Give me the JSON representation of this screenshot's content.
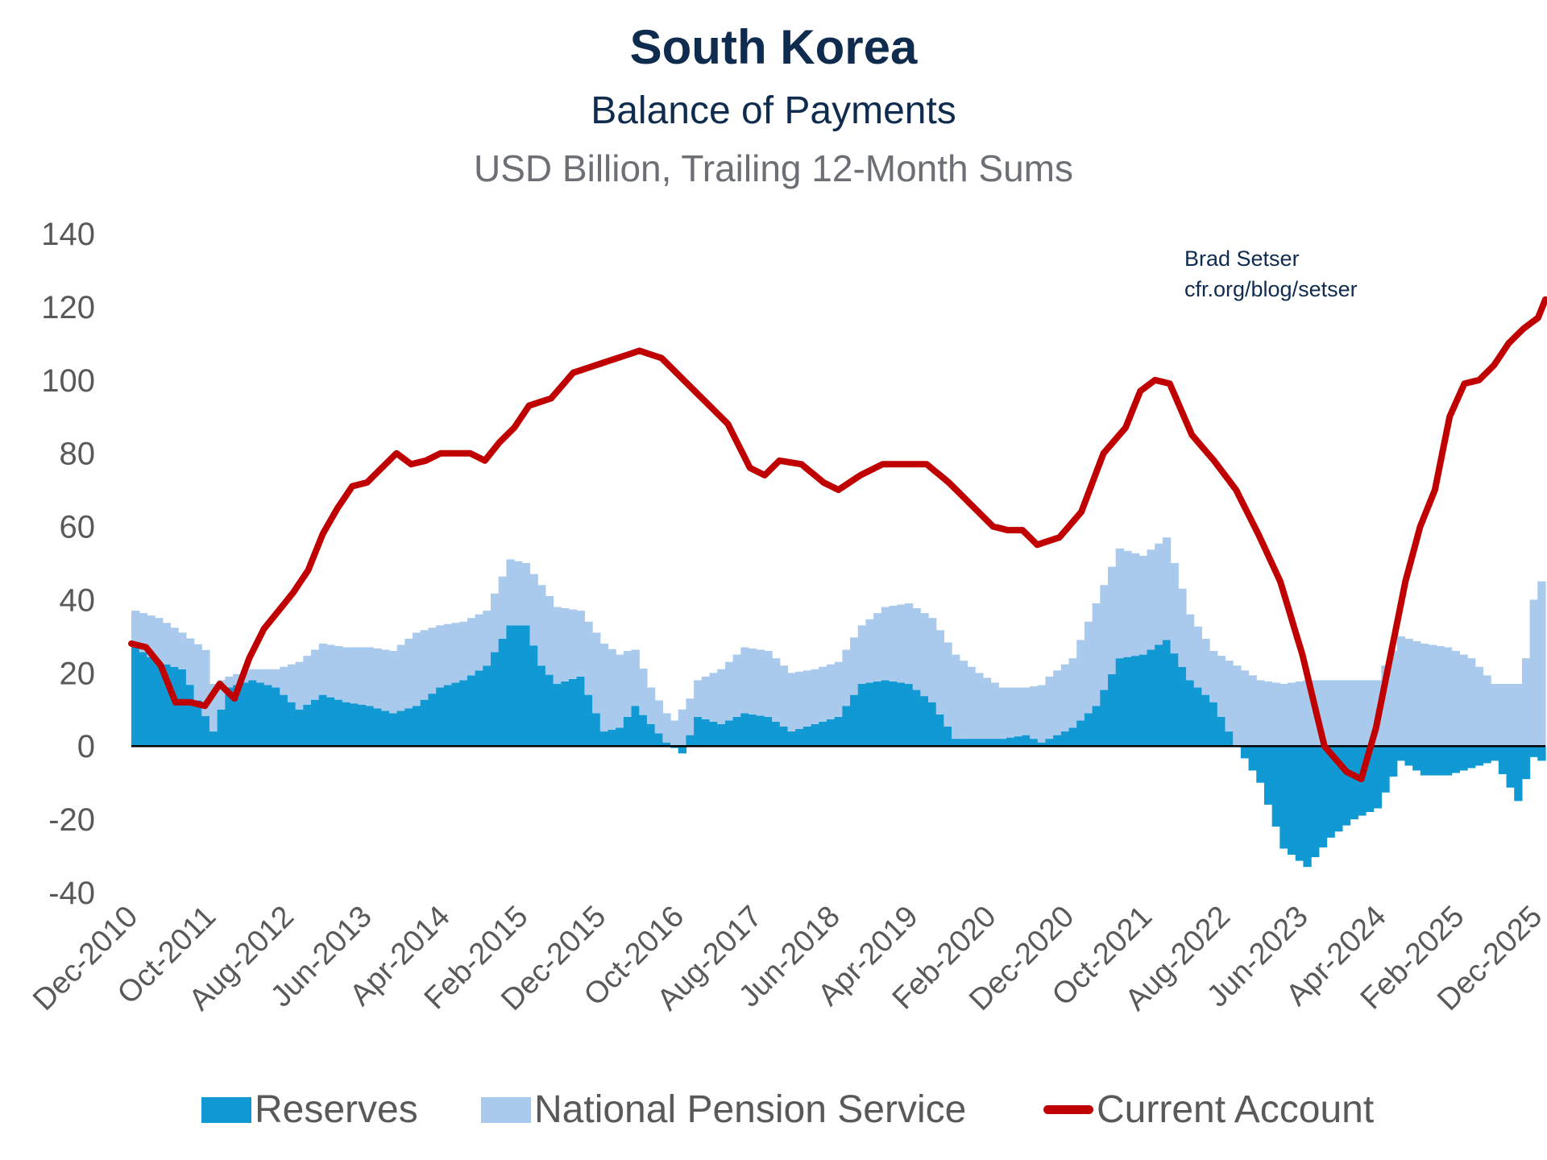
{
  "chart_data": {
    "type": "bar",
    "title": "South Korea",
    "subtitle": "Balance of Payments",
    "units": "USD Billion, Trailing 12-Month Sums",
    "credit": [
      "Brad Setser",
      "cfr.org/blog/setser"
    ],
    "xlabel": "",
    "ylabel": "",
    "ylim": [
      -40,
      140
    ],
    "yticks": [
      140,
      120,
      100,
      80,
      60,
      40,
      20,
      0,
      -20,
      -40
    ],
    "xtick_labels": [
      "Dec-2010",
      "Oct-2011",
      "Aug-2012",
      "Jun-2013",
      "Apr-2014",
      "Feb-2015",
      "Dec-2015",
      "Oct-2016",
      "Aug-2017",
      "Jun-2018",
      "Apr-2019",
      "Feb-2020",
      "Dec-2020",
      "Oct-2021",
      "Aug-2022",
      "Jun-2023",
      "Apr-2024",
      "Feb-2025",
      "Dec-2025"
    ],
    "x_note": "Monthly observations from Dec-2010 to Dec-2025 (181 months); values sampled at the labeled ticks and interpolated between them",
    "legend": [
      "Reserves",
      "National Pension Service",
      "Current Account"
    ],
    "colors": {
      "reserves": "#1199d4",
      "nps": "#a9caec",
      "current_account": "#c00000",
      "axis": "#000000"
    },
    "series": [
      {
        "name": "Reserves",
        "kind": "stacked-bar",
        "anchors": [
          [
            0,
            27
          ],
          [
            3,
            23
          ],
          [
            6,
            21
          ],
          [
            10,
            4
          ],
          [
            12,
            16
          ],
          [
            15,
            18
          ],
          [
            18,
            16
          ],
          [
            21,
            10
          ],
          [
            24,
            14
          ],
          [
            27,
            12
          ],
          [
            30,
            11
          ],
          [
            33,
            9
          ],
          [
            36,
            11
          ],
          [
            39,
            16
          ],
          [
            42,
            18
          ],
          [
            45,
            22
          ],
          [
            48,
            33
          ],
          [
            50,
            33
          ],
          [
            52,
            22
          ],
          [
            54,
            17
          ],
          [
            57,
            19
          ],
          [
            60,
            4
          ],
          [
            62,
            5
          ],
          [
            64,
            11
          ],
          [
            66,
            6
          ],
          [
            68,
            1
          ],
          [
            70,
            -2
          ],
          [
            72,
            8
          ],
          [
            75,
            6
          ],
          [
            78,
            9
          ],
          [
            81,
            8
          ],
          [
            84,
            4
          ],
          [
            87,
            6
          ],
          [
            90,
            8
          ],
          [
            93,
            17
          ],
          [
            96,
            18
          ],
          [
            99,
            17
          ],
          [
            102,
            12
          ],
          [
            105,
            2
          ],
          [
            108,
            2
          ],
          [
            111,
            2
          ],
          [
            114,
            3
          ],
          [
            116,
            1
          ],
          [
            118,
            3
          ],
          [
            120,
            5
          ],
          [
            123,
            11
          ],
          [
            126,
            24
          ],
          [
            129,
            25
          ],
          [
            132,
            29
          ],
          [
            135,
            18
          ],
          [
            138,
            12
          ],
          [
            141,
            0
          ],
          [
            144,
            -10
          ],
          [
            147,
            -28
          ],
          [
            150,
            -33
          ],
          [
            153,
            -25
          ],
          [
            156,
            -20
          ],
          [
            159,
            -17
          ],
          [
            162,
            -4
          ],
          [
            165,
            -8
          ],
          [
            168,
            -8
          ],
          [
            171,
            -6
          ],
          [
            174,
            -4
          ],
          [
            177,
            -15
          ],
          [
            179,
            -3
          ],
          [
            180,
            -4
          ]
        ]
      },
      {
        "name": "National Pension Service",
        "kind": "stacked-bar",
        "anchors": [
          [
            0,
            10
          ],
          [
            3,
            12
          ],
          [
            6,
            10
          ],
          [
            9,
            18
          ],
          [
            12,
            3
          ],
          [
            15,
            3
          ],
          [
            18,
            5
          ],
          [
            21,
            13
          ],
          [
            24,
            14
          ],
          [
            27,
            15
          ],
          [
            30,
            16
          ],
          [
            33,
            17
          ],
          [
            36,
            20
          ],
          [
            39,
            17
          ],
          [
            42,
            16
          ],
          [
            45,
            15
          ],
          [
            48,
            18
          ],
          [
            50,
            17
          ],
          [
            52,
            22
          ],
          [
            54,
            21
          ],
          [
            57,
            18
          ],
          [
            60,
            24
          ],
          [
            63,
            18
          ],
          [
            66,
            10
          ],
          [
            69,
            7
          ],
          [
            70,
            10
          ],
          [
            72,
            10
          ],
          [
            75,
            15
          ],
          [
            78,
            18
          ],
          [
            81,
            18
          ],
          [
            84,
            16
          ],
          [
            87,
            15
          ],
          [
            90,
            15
          ],
          [
            93,
            16
          ],
          [
            96,
            20
          ],
          [
            99,
            22
          ],
          [
            102,
            23
          ],
          [
            105,
            23
          ],
          [
            108,
            18
          ],
          [
            111,
            14
          ],
          [
            114,
            13
          ],
          [
            117,
            17
          ],
          [
            120,
            19
          ],
          [
            123,
            28
          ],
          [
            126,
            30
          ],
          [
            129,
            27
          ],
          [
            132,
            28
          ],
          [
            135,
            18
          ],
          [
            138,
            14
          ],
          [
            141,
            22
          ],
          [
            144,
            18
          ],
          [
            147,
            17
          ],
          [
            150,
            18
          ],
          [
            153,
            18
          ],
          [
            156,
            18
          ],
          [
            159,
            18
          ],
          [
            162,
            30
          ],
          [
            165,
            28
          ],
          [
            168,
            27
          ],
          [
            171,
            24
          ],
          [
            174,
            17
          ],
          [
            177,
            17
          ],
          [
            178,
            24
          ],
          [
            179,
            40
          ],
          [
            180,
            45
          ]
        ]
      },
      {
        "name": "Current Account",
        "kind": "line",
        "anchors": [
          [
            0,
            28
          ],
          [
            2,
            27
          ],
          [
            4,
            22
          ],
          [
            6,
            12
          ],
          [
            8,
            12
          ],
          [
            10,
            11
          ],
          [
            12,
            17
          ],
          [
            14,
            13
          ],
          [
            16,
            24
          ],
          [
            18,
            32
          ],
          [
            20,
            37
          ],
          [
            22,
            42
          ],
          [
            24,
            48
          ],
          [
            26,
            58
          ],
          [
            28,
            65
          ],
          [
            30,
            71
          ],
          [
            32,
            72
          ],
          [
            34,
            76
          ],
          [
            36,
            80
          ],
          [
            38,
            77
          ],
          [
            40,
            78
          ],
          [
            42,
            80
          ],
          [
            44,
            80
          ],
          [
            46,
            80
          ],
          [
            48,
            78
          ],
          [
            50,
            83
          ],
          [
            52,
            87
          ],
          [
            54,
            93
          ],
          [
            57,
            95
          ],
          [
            60,
            102
          ],
          [
            63,
            104
          ],
          [
            66,
            106
          ],
          [
            69,
            108
          ],
          [
            72,
            106
          ],
          [
            75,
            100
          ],
          [
            78,
            94
          ],
          [
            81,
            88
          ],
          [
            84,
            76
          ],
          [
            86,
            74
          ],
          [
            88,
            78
          ],
          [
            91,
            77
          ],
          [
            94,
            72
          ],
          [
            96,
            70
          ],
          [
            99,
            74
          ],
          [
            102,
            77
          ],
          [
            105,
            77
          ],
          [
            108,
            77
          ],
          [
            111,
            72
          ],
          [
            114,
            66
          ],
          [
            117,
            60
          ],
          [
            119,
            59
          ],
          [
            121,
            59
          ],
          [
            123,
            55
          ],
          [
            126,
            57
          ],
          [
            129,
            64
          ],
          [
            132,
            80
          ],
          [
            135,
            87
          ],
          [
            137,
            97
          ],
          [
            139,
            100
          ],
          [
            141,
            99
          ],
          [
            144,
            85
          ],
          [
            147,
            78
          ],
          [
            150,
            70
          ],
          [
            153,
            58
          ],
          [
            156,
            45
          ],
          [
            159,
            25
          ],
          [
            162,
            0
          ],
          [
            165,
            -7
          ],
          [
            167,
            -9
          ],
          [
            169,
            5
          ],
          [
            171,
            25
          ],
          [
            173,
            45
          ],
          [
            175,
            60
          ],
          [
            177,
            70
          ],
          [
            179,
            90
          ],
          [
            181,
            99
          ],
          [
            183,
            100
          ],
          [
            185,
            104
          ],
          [
            187,
            110
          ],
          [
            189,
            114
          ],
          [
            191,
            117
          ]
        ]
      }
    ],
    "current_account_note": "Current Account series anchors use a 191-step monthly index; the final point (index 191) is about 122 at the right edge."
  }
}
